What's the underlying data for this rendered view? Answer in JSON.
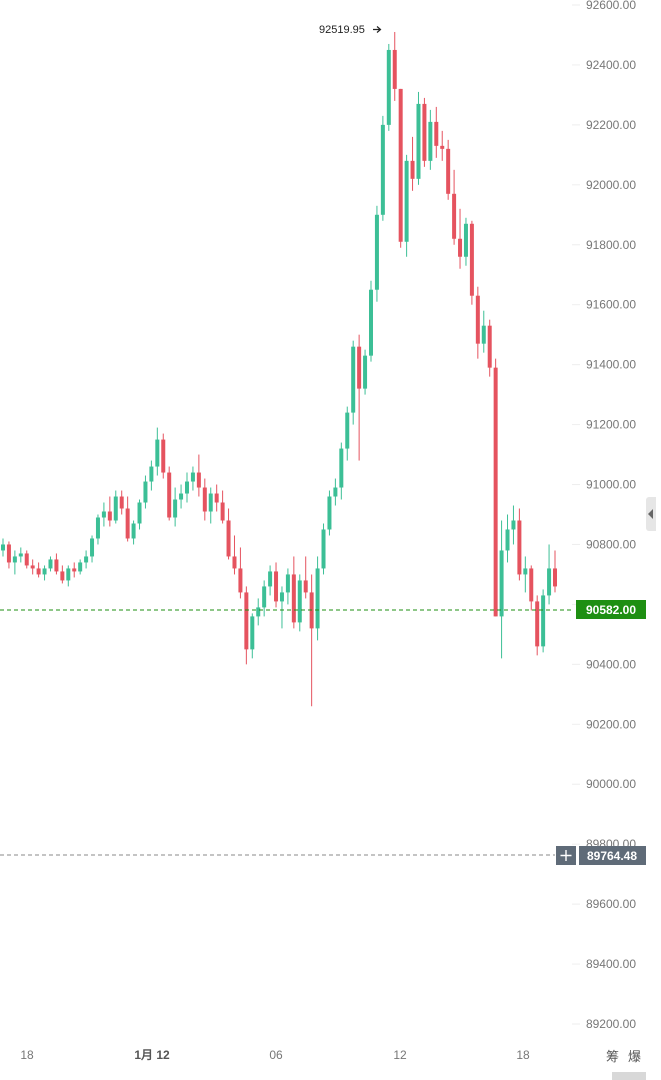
{
  "chart_data": {
    "type": "candlestick",
    "y_axis": {
      "ticks": [
        "92600.00",
        "92400.00",
        "92200.00",
        "92000.00",
        "91800.00",
        "91600.00",
        "91400.00",
        "91200.00",
        "91000.00",
        "90800.00",
        "90600.00",
        "90400.00",
        "90200.00",
        "90000.00",
        "89800.00",
        "89600.00",
        "89400.00",
        "89200.00"
      ],
      "range": [
        89100,
        92600
      ]
    },
    "x_axis": {
      "ticks": [
        {
          "label": "18",
          "bold": false
        },
        {
          "label": "1月 12",
          "bold": true
        },
        {
          "label": "06",
          "bold": false
        },
        {
          "label": "12",
          "bold": false
        },
        {
          "label": "18",
          "bold": false
        }
      ]
    },
    "high_label": "92519.95",
    "current_price": {
      "value": "90582.00",
      "color": "#1e8f12"
    },
    "crosshair_price": {
      "value": "89764.48",
      "color": "#5f6b78"
    },
    "colors": {
      "up": "#3cbf96",
      "down": "#e5535f"
    },
    "candles": [
      [
        90780,
        90820,
        90760,
        90800
      ],
      [
        90800,
        90810,
        90720,
        90740
      ],
      [
        90740,
        90780,
        90700,
        90760
      ],
      [
        90760,
        90790,
        90740,
        90770
      ],
      [
        90770,
        90780,
        90720,
        90730
      ],
      [
        90730,
        90750,
        90700,
        90720
      ],
      [
        90720,
        90740,
        90690,
        90700
      ],
      [
        90700,
        90730,
        90680,
        90720
      ],
      [
        90720,
        90760,
        90710,
        90750
      ],
      [
        90750,
        90770,
        90700,
        90710
      ],
      [
        90710,
        90730,
        90670,
        90680
      ],
      [
        90680,
        90730,
        90660,
        90720
      ],
      [
        90720,
        90740,
        90690,
        90710
      ],
      [
        90710,
        90750,
        90700,
        90740
      ],
      [
        90740,
        90780,
        90720,
        90760
      ],
      [
        90760,
        90830,
        90740,
        90820
      ],
      [
        90820,
        90900,
        90800,
        90890
      ],
      [
        90890,
        90940,
        90860,
        90910
      ],
      [
        90910,
        90960,
        90860,
        90880
      ],
      [
        90880,
        90980,
        90870,
        90960
      ],
      [
        90960,
        90980,
        90900,
        90920
      ],
      [
        90920,
        90960,
        90810,
        90820
      ],
      [
        90820,
        90880,
        90800,
        90870
      ],
      [
        90870,
        90950,
        90850,
        90940
      ],
      [
        90940,
        91030,
        90920,
        91010
      ],
      [
        91010,
        91080,
        90980,
        91060
      ],
      [
        91060,
        91190,
        91030,
        91150
      ],
      [
        91150,
        91170,
        91020,
        91040
      ],
      [
        91040,
        91060,
        90880,
        90890
      ],
      [
        90890,
        90990,
        90860,
        90950
      ],
      [
        90950,
        91000,
        90920,
        90970
      ],
      [
        90970,
        91040,
        90940,
        91010
      ],
      [
        91010,
        91060,
        90980,
        91040
      ],
      [
        91040,
        91100,
        90960,
        90990
      ],
      [
        90990,
        91020,
        90880,
        90910
      ],
      [
        90910,
        90990,
        90870,
        90970
      ],
      [
        90970,
        91000,
        90910,
        90940
      ],
      [
        90940,
        90980,
        90870,
        90880
      ],
      [
        90880,
        90920,
        90750,
        90760
      ],
      [
        90760,
        90830,
        90700,
        90720
      ],
      [
        90720,
        90790,
        90620,
        90640
      ],
      [
        90640,
        90660,
        90400,
        90450
      ],
      [
        90450,
        90570,
        90420,
        90560
      ],
      [
        90560,
        90620,
        90530,
        90590
      ],
      [
        90590,
        90680,
        90560,
        90660
      ],
      [
        90660,
        90730,
        90630,
        90710
      ],
      [
        90710,
        90740,
        90590,
        90610
      ],
      [
        90610,
        90660,
        90520,
        90640
      ],
      [
        90640,
        90720,
        90600,
        90700
      ],
      [
        90700,
        90760,
        90520,
        90540
      ],
      [
        90540,
        90700,
        90510,
        90680
      ],
      [
        90680,
        90760,
        90620,
        90640
      ],
      [
        90640,
        90700,
        90260,
        90520
      ],
      [
        90520,
        90760,
        90480,
        90720
      ],
      [
        90720,
        90870,
        90700,
        90850
      ],
      [
        90850,
        90980,
        90830,
        90960
      ],
      [
        90960,
        91020,
        90930,
        90990
      ],
      [
        90990,
        91140,
        90950,
        91120
      ],
      [
        91120,
        91260,
        91080,
        91240
      ],
      [
        91240,
        91480,
        91200,
        91460
      ],
      [
        91460,
        91500,
        91080,
        91320
      ],
      [
        91320,
        91450,
        91300,
        91430
      ],
      [
        91430,
        91680,
        91410,
        91650
      ],
      [
        91650,
        91930,
        91610,
        91900
      ],
      [
        91900,
        92230,
        91880,
        92200
      ],
      [
        92200,
        92470,
        92180,
        92450
      ],
      [
        92450,
        92510,
        92280,
        92320
      ],
      [
        92320,
        92320,
        91790,
        91810
      ],
      [
        91810,
        92100,
        91760,
        92080
      ],
      [
        92080,
        92160,
        91980,
        92020
      ],
      [
        92020,
        92310,
        92000,
        92270
      ],
      [
        92270,
        92290,
        92060,
        92080
      ],
      [
        92080,
        92250,
        92050,
        92210
      ],
      [
        92210,
        92260,
        92090,
        92130
      ],
      [
        92130,
        92180,
        92080,
        92120
      ],
      [
        92120,
        92150,
        91950,
        91970
      ],
      [
        91970,
        92050,
        91800,
        91820
      ],
      [
        91820,
        91920,
        91720,
        91760
      ],
      [
        91760,
        91890,
        91730,
        91870
      ],
      [
        91870,
        91880,
        91600,
        91630
      ],
      [
        91630,
        91660,
        91420,
        91470
      ],
      [
        91470,
        91580,
        91440,
        91530
      ],
      [
        91530,
        91550,
        91360,
        91390
      ],
      [
        91390,
        91420,
        90560,
        90560
      ],
      [
        90560,
        90880,
        90420,
        90780
      ],
      [
        90780,
        90900,
        90740,
        90850
      ],
      [
        90850,
        90930,
        90800,
        90880
      ],
      [
        90880,
        90920,
        90680,
        90700
      ],
      [
        90700,
        90760,
        90640,
        90720
      ],
      [
        90720,
        90730,
        90580,
        90610
      ],
      [
        90610,
        90630,
        90430,
        90460
      ],
      [
        90460,
        90650,
        90440,
        90630
      ],
      [
        90630,
        90800,
        90600,
        90720
      ],
      [
        90720,
        90780,
        90640,
        90660
      ]
    ]
  },
  "toolbar": {
    "btn1": "筹",
    "btn2": "爆"
  }
}
